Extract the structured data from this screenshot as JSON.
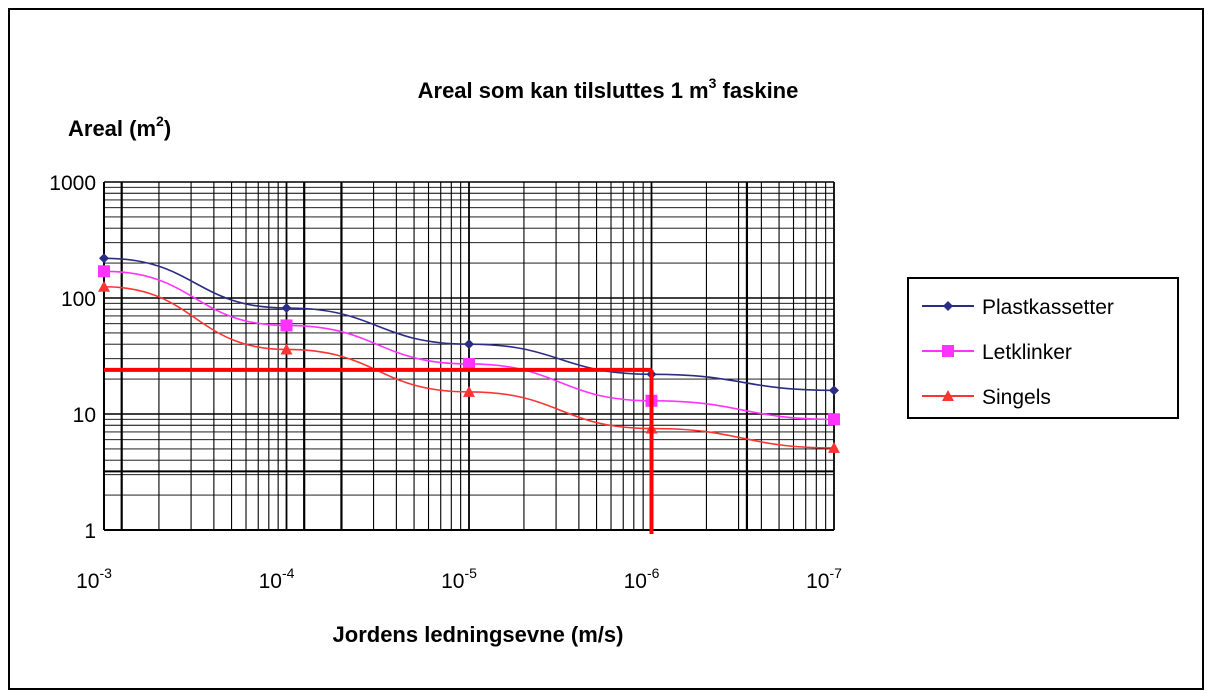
{
  "chart_data": {
    "type": "line",
    "title": "Areal som kan tilsluttes 1 m",
    "title_sup": "3",
    "title_tail": " faskine",
    "ylabel": "Areal (m",
    "ylabel_sup": "2",
    "ylabel_tail": ")",
    "xlabel": "Jordens ledningsevne (m/s)",
    "y_scale": "log",
    "ylim": [
      1,
      1000
    ],
    "ytick_labels": [
      "1000",
      "100",
      "10",
      "1"
    ],
    "xtick_base": "10",
    "xtick_exponents": [
      "-3",
      "-4",
      "-5",
      "-6",
      "-7"
    ],
    "x": [
      0.001,
      0.0001,
      1e-05,
      1e-06,
      1e-07
    ],
    "grid": true,
    "legend_position": "right",
    "series": [
      {
        "name": "Plastkassetter",
        "color": "#2b2d84",
        "marker": "diamond",
        "values": [
          220,
          82,
          40,
          22,
          16
        ]
      },
      {
        "name": "Letklinker",
        "color": "#ff33ff",
        "marker": "square",
        "values": [
          170,
          58,
          27,
          13,
          9
        ]
      },
      {
        "name": "Singels",
        "color": "#ff3333",
        "marker": "triangle",
        "values": [
          125,
          36,
          15.5,
          7.5,
          5.1
        ]
      }
    ],
    "annotation": {
      "color": "#ff0000",
      "y_level": 24,
      "x_level": 1e-06
    }
  }
}
